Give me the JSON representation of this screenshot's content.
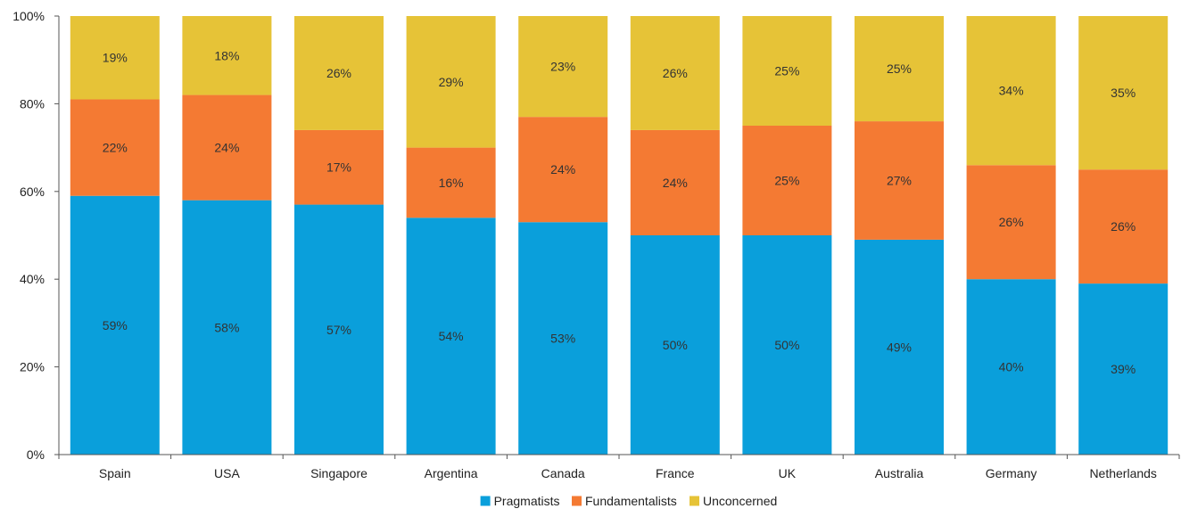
{
  "chart_data": {
    "type": "bar",
    "stacked": true,
    "categories": [
      "Spain",
      "USA",
      "Singapore",
      "Argentina",
      "Canada",
      "France",
      "UK",
      "Australia",
      "Germany",
      "Netherlands"
    ],
    "series": [
      {
        "name": "Pragmatists",
        "color": "#0a9fdb",
        "values": [
          59,
          58,
          57,
          54,
          53,
          50,
          50,
          49,
          40,
          39
        ],
        "labels": [
          "59%",
          "58%",
          "57%",
          "54%",
          "53%",
          "50%",
          "50%",
          "49%",
          "40%",
          "39%"
        ]
      },
      {
        "name": "Fundamentalists",
        "color": "#f47a33",
        "values": [
          22,
          24,
          17,
          16,
          24,
          24,
          25,
          27,
          26,
          26
        ],
        "labels": [
          "22%",
          "24%",
          "17%",
          "16%",
          "24%",
          "24%",
          "25%",
          "27%",
          "26%",
          "26%"
        ]
      },
      {
        "name": "Unconcerned",
        "color": "#e6c337",
        "values": [
          19,
          18,
          26,
          29,
          23,
          26,
          25,
          25,
          34,
          35
        ],
        "labels": [
          "19%",
          "18%",
          "26%",
          "29%",
          "23%",
          "26%",
          "25%",
          "25%",
          "34%",
          "35%"
        ]
      }
    ],
    "ylim": [
      0,
      100
    ],
    "yticks": [
      0,
      20,
      40,
      60,
      80,
      100
    ],
    "ytick_labels": [
      "0%",
      "20%",
      "40%",
      "60%",
      "80%",
      "100%"
    ],
    "grid": false,
    "legend_position": "bottom-center"
  }
}
